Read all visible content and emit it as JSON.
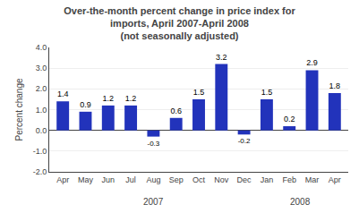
{
  "chart_data": {
    "type": "bar",
    "title": "Over-the-month percent change in price index for\nimports, April 2007-April 2008\n(not seasonally adjusted)",
    "ylabel": "Percent change",
    "categories": [
      "Apr",
      "May",
      "Jun",
      "Jul",
      "Aug",
      "Sep",
      "Oct",
      "Nov",
      "Dec",
      "Jan",
      "Feb",
      "Mar",
      "Apr"
    ],
    "values": [
      1.4,
      0.9,
      1.2,
      1.2,
      -0.3,
      0.6,
      1.5,
      3.2,
      -0.2,
      1.5,
      0.2,
      2.9,
      1.8
    ],
    "color": "#2233BB",
    "ylim": [
      -2.0,
      4.0
    ],
    "yticks": [
      {
        "value": -2.0,
        "label": "-2.0"
      },
      {
        "value": -1.0,
        "label": "-1.0"
      },
      {
        "value": 0.0,
        "label": "0.0"
      },
      {
        "value": 1.0,
        "label": "1.0"
      },
      {
        "value": 2.0,
        "label": "2.0"
      },
      {
        "value": 3.0,
        "label": "3.0"
      },
      {
        "value": 4.0,
        "label": "4.0"
      }
    ],
    "grid": true,
    "data_labels": true,
    "annotations": [
      {
        "text": "2007",
        "x": 4.0
      },
      {
        "text": "2008",
        "x": 10.5
      }
    ]
  }
}
